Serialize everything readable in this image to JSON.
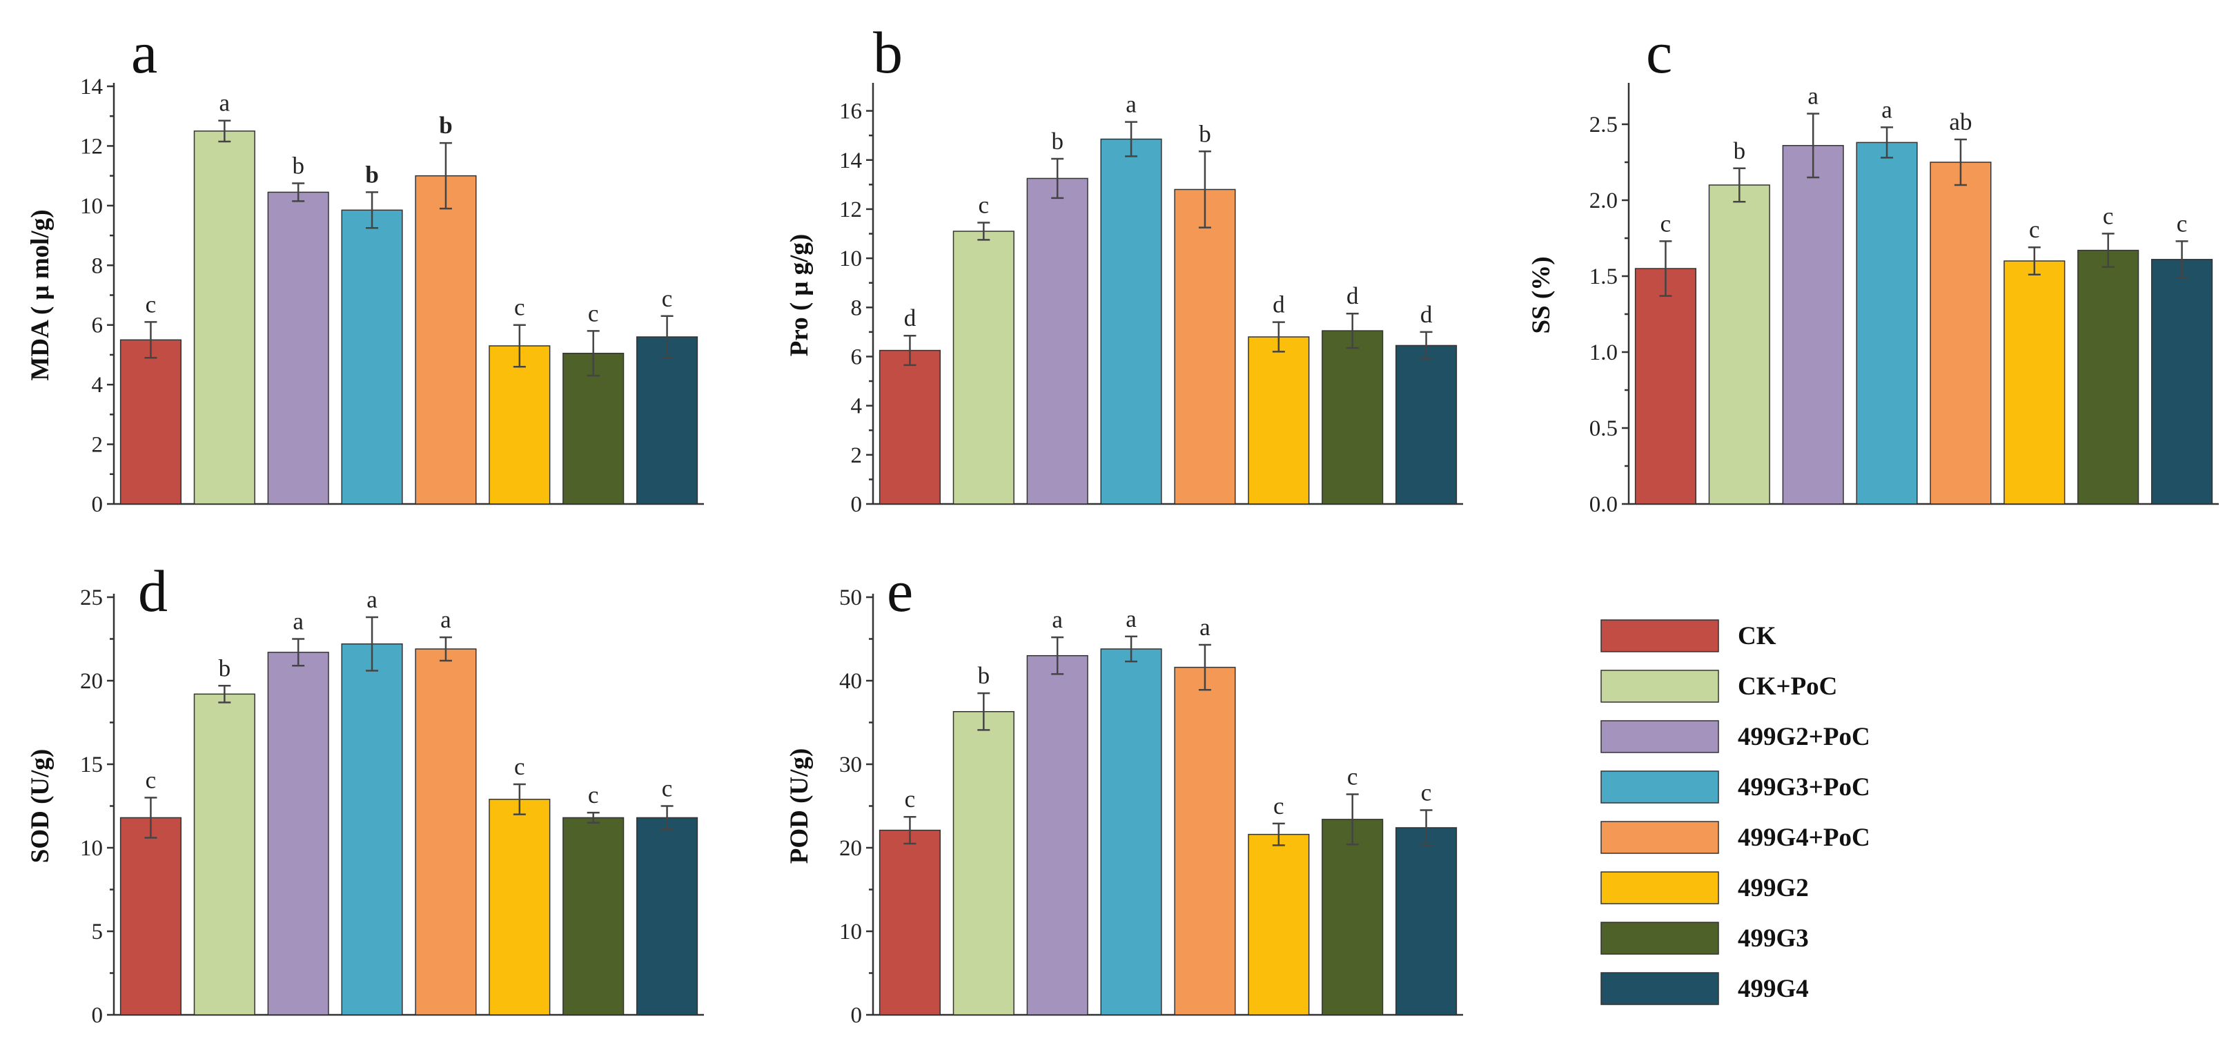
{
  "colors": {
    "CK": "#c24d45",
    "CK+PoC": "#c5d79c",
    "499G2+PoC": "#a493bd",
    "499G3+PoC": "#4aaac6",
    "499G4+PoC": "#f49955",
    "499G2": "#fbbf0b",
    "499G3": "#4e6129",
    "499G4": "#1f5063"
  },
  "legend": [
    "CK",
    "CK+PoC",
    "499G2+PoC",
    "499G3+PoC",
    "499G4+PoC",
    "499G2",
    "499G3",
    "499G4"
  ],
  "chart_data": [
    {
      "type": "bar",
      "panel": "a",
      "ylabel": "MDA ( μ mol/g)",
      "ylim": [
        0,
        14
      ],
      "yticks": [
        0,
        2,
        4,
        6,
        8,
        10,
        12,
        14
      ],
      "categories": [
        "CK",
        "CK+PoC",
        "499G2+PoC",
        "499G3+PoC",
        "499G4+PoC",
        "499G2",
        "499G3",
        "499G4"
      ],
      "values": [
        5.5,
        12.5,
        10.45,
        9.85,
        11.0,
        5.3,
        5.05,
        5.6
      ],
      "errors": [
        0.6,
        0.35,
        0.3,
        0.6,
        1.1,
        0.7,
        0.75,
        0.7
      ],
      "letters": [
        "c",
        "a",
        "b",
        "b",
        "b",
        "c",
        "c",
        "c"
      ],
      "bold_letters": [
        false,
        false,
        false,
        true,
        true,
        false,
        false,
        false
      ]
    },
    {
      "type": "bar",
      "panel": "b",
      "ylabel": "Pro ( μ g/g)",
      "ylim": [
        0,
        17
      ],
      "yticks": [
        0,
        2,
        4,
        6,
        8,
        10,
        12,
        14,
        16
      ],
      "categories": [
        "CK",
        "CK+PoC",
        "499G2+PoC",
        "499G3+PoC",
        "499G4+PoC",
        "499G2",
        "499G3",
        "499G4"
      ],
      "values": [
        6.25,
        11.1,
        13.25,
        14.85,
        12.8,
        6.8,
        7.05,
        6.45
      ],
      "errors": [
        0.6,
        0.35,
        0.8,
        0.7,
        1.55,
        0.6,
        0.7,
        0.55
      ],
      "letters": [
        "d",
        "c",
        "b",
        "a",
        "b",
        "d",
        "d",
        "d"
      ],
      "bold_letters": [
        false,
        false,
        false,
        false,
        false,
        false,
        false,
        false
      ]
    },
    {
      "type": "bar",
      "panel": "c",
      "ylabel": "SS (%)",
      "ylim": [
        0,
        2.75
      ],
      "yticks": [
        "0.0",
        "0.5",
        "1.0",
        "1.5",
        "2.0",
        "2.5"
      ],
      "categories": [
        "CK",
        "CK+PoC",
        "499G2+PoC",
        "499G3+PoC",
        "499G4+PoC",
        "499G2",
        "499G3",
        "499G4"
      ],
      "values": [
        1.55,
        2.1,
        2.36,
        2.38,
        2.25,
        1.6,
        1.67,
        1.61
      ],
      "errors": [
        0.18,
        0.11,
        0.21,
        0.1,
        0.15,
        0.09,
        0.11,
        0.12
      ],
      "letters": [
        "c",
        "b",
        "a",
        "a",
        "ab",
        "c",
        "c",
        "c"
      ],
      "bold_letters": [
        false,
        false,
        false,
        false,
        false,
        false,
        false,
        false
      ]
    },
    {
      "type": "bar",
      "panel": "d",
      "ylabel": "SOD (U/g)",
      "ylim": [
        0,
        25
      ],
      "yticks": [
        0,
        5,
        10,
        15,
        20,
        25
      ],
      "categories": [
        "CK",
        "CK+PoC",
        "499G2+PoC",
        "499G3+PoC",
        "499G4+PoC",
        "499G2",
        "499G3",
        "499G4"
      ],
      "values": [
        11.8,
        19.2,
        21.7,
        22.2,
        21.9,
        12.9,
        11.8,
        11.8
      ],
      "errors": [
        1.2,
        0.5,
        0.8,
        1.6,
        0.7,
        0.9,
        0.3,
        0.7
      ],
      "letters": [
        "c",
        "b",
        "a",
        "a",
        "a",
        "c",
        "c",
        "c"
      ],
      "bold_letters": [
        false,
        false,
        false,
        false,
        false,
        false,
        false,
        false
      ]
    },
    {
      "type": "bar",
      "panel": "e",
      "ylabel": "POD (U/g)",
      "ylim": [
        0,
        50
      ],
      "yticks": [
        0,
        10,
        20,
        30,
        40,
        50
      ],
      "categories": [
        "CK",
        "CK+PoC",
        "499G2+PoC",
        "499G3+PoC",
        "499G4+PoC",
        "499G2",
        "499G3",
        "499G4"
      ],
      "values": [
        22.1,
        36.3,
        43.0,
        43.8,
        41.6,
        21.6,
        23.4,
        22.4
      ],
      "errors": [
        1.6,
        2.2,
        2.2,
        1.5,
        2.7,
        1.3,
        3.0,
        2.1
      ],
      "letters": [
        "c",
        "b",
        "a",
        "a",
        "a",
        "c",
        "c",
        "c"
      ],
      "bold_letters": [
        false,
        false,
        false,
        false,
        false,
        false,
        false,
        false
      ]
    }
  ]
}
